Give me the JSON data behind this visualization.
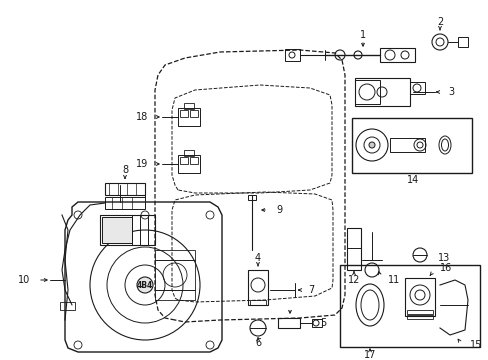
{
  "background_color": "#ffffff",
  "figsize": [
    4.89,
    3.6
  ],
  "dpi": 100,
  "line_color": "#1a1a1a",
  "text_color": "#1a1a1a",
  "label_fontsize": 7.0
}
